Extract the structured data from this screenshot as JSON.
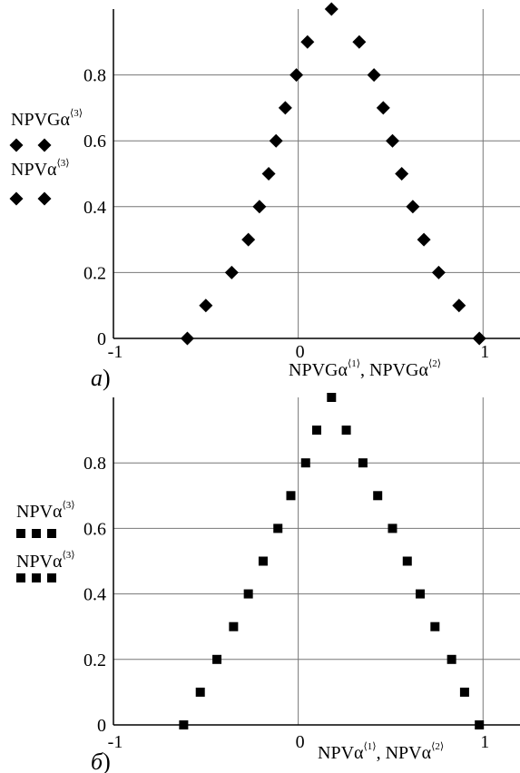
{
  "chart_data": [
    {
      "type": "scatter",
      "panel_label": "а",
      "xlabel": {
        "base1": "NPVGα",
        "sup1": "⟨1⟩",
        "sep": ", ",
        "base2": "NPVGα",
        "sup2": "⟨2⟩"
      },
      "x_ticks": [
        "-1",
        "0",
        "1"
      ],
      "y_ticks": [
        "0",
        "0.2",
        "0.4",
        "0.6",
        "0.8"
      ],
      "xlim": [
        -1,
        1.2
      ],
      "ylim": [
        0,
        1
      ],
      "grid": true,
      "legend": [
        {
          "base": "NPVGα",
          "sup": "⟨3⟩",
          "marker": "diamond",
          "count": 2
        },
        {
          "base": "NPVα",
          "sup": "⟨3⟩",
          "marker": "diamond",
          "count": 2
        }
      ],
      "series": [
        {
          "marker": "diamond",
          "points": [
            [
              -0.6,
              0.0
            ],
            [
              -0.5,
              0.1
            ],
            [
              -0.36,
              0.2
            ],
            [
              -0.27,
              0.3
            ],
            [
              -0.21,
              0.4
            ],
            [
              -0.16,
              0.5
            ],
            [
              -0.12,
              0.6
            ],
            [
              -0.07,
              0.7
            ],
            [
              -0.01,
              0.8
            ],
            [
              0.05,
              0.9
            ],
            [
              0.18,
              1.0
            ],
            [
              0.33,
              0.9
            ],
            [
              0.41,
              0.8
            ],
            [
              0.46,
              0.7
            ],
            [
              0.51,
              0.6
            ],
            [
              0.56,
              0.5
            ],
            [
              0.62,
              0.4
            ],
            [
              0.68,
              0.3
            ],
            [
              0.76,
              0.2
            ],
            [
              0.87,
              0.1
            ],
            [
              0.98,
              0.0
            ]
          ]
        }
      ]
    },
    {
      "type": "scatter",
      "panel_label": "б",
      "xlabel": {
        "base1": "NPVα",
        "sup1": "⟨1⟩",
        "sep": ", ",
        "base2": "NPVα",
        "sup2": "⟨2⟩"
      },
      "x_ticks": [
        "-1",
        "0",
        "1"
      ],
      "y_ticks": [
        "0",
        "0.2",
        "0.4",
        "0.6",
        "0.8"
      ],
      "xlim": [
        -1,
        1.2
      ],
      "ylim": [
        0,
        1
      ],
      "grid": true,
      "legend": [
        {
          "base": "NPVα",
          "sup": "⟨3⟩",
          "marker": "square",
          "count": 3
        },
        {
          "base": "NPVα",
          "sup": "⟨3⟩",
          "marker": "square",
          "count": 3
        }
      ],
      "series": [
        {
          "marker": "square",
          "points": [
            [
              -0.62,
              0.0
            ],
            [
              -0.53,
              0.1
            ],
            [
              -0.44,
              0.2
            ],
            [
              -0.35,
              0.3
            ],
            [
              -0.27,
              0.4
            ],
            [
              -0.19,
              0.5
            ],
            [
              -0.11,
              0.6
            ],
            [
              -0.04,
              0.7
            ],
            [
              0.04,
              0.8
            ],
            [
              0.1,
              0.9
            ],
            [
              0.18,
              1.0
            ],
            [
              0.26,
              0.9
            ],
            [
              0.35,
              0.8
            ],
            [
              0.43,
              0.7
            ],
            [
              0.51,
              0.6
            ],
            [
              0.59,
              0.5
            ],
            [
              0.66,
              0.4
            ],
            [
              0.74,
              0.3
            ],
            [
              0.83,
              0.2
            ],
            [
              0.9,
              0.1
            ],
            [
              0.98,
              0.0
            ]
          ]
        }
      ]
    }
  ]
}
